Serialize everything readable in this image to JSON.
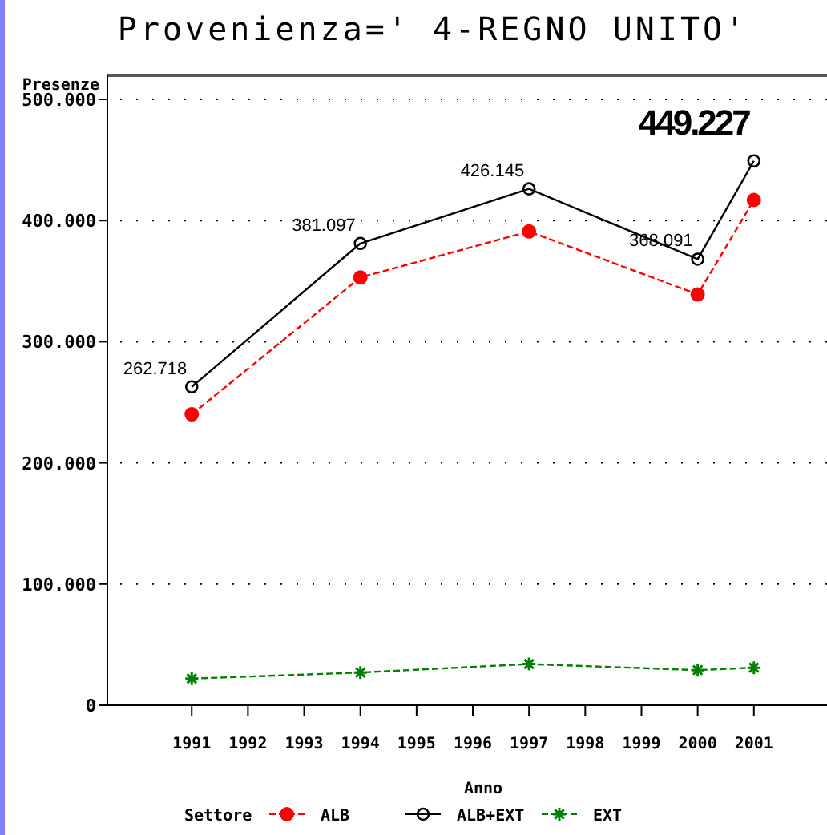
{
  "chart_data": {
    "type": "line",
    "title": "Provenienza=' 4-REGNO UNITO'",
    "xlabel": "Anno",
    "ylabel": "Presenze",
    "legend_title": "Settore",
    "x": [
      1991,
      1994,
      1997,
      2000,
      2001
    ],
    "xlim": [
      1989.5,
      2002.3
    ],
    "xticks": [
      1991,
      1992,
      1993,
      1994,
      1995,
      1996,
      1997,
      1998,
      1999,
      2000,
      2001
    ],
    "ylim": [
      0,
      500000
    ],
    "yticks": [
      0,
      {
        "value": 100000,
        "label": "100.000"
      },
      {
        "value": 200000,
        "label": "200.000"
      },
      {
        "value": 300000,
        "label": "300.000"
      },
      {
        "value": 400000,
        "label": "400.000"
      },
      {
        "value": 500000,
        "label": "500.000"
      }
    ],
    "grid": "y",
    "legend": "bottom",
    "series": [
      {
        "name": "ALB",
        "color": "#ff0000",
        "marker": "circle",
        "line_style": "dashed",
        "values": [
          240000,
          353000,
          391000,
          339000,
          417000
        ]
      },
      {
        "name": "ALB+EXT",
        "color": "#000000",
        "marker": "open-circle",
        "line_style": "solid",
        "values": [
          262718,
          381097,
          426145,
          368091,
          449227
        ],
        "value_labels": [
          "262.718",
          "381.097",
          "426.145",
          "368.091",
          "449.227"
        ]
      },
      {
        "name": "EXT",
        "color": "#008000",
        "marker": "cross",
        "line_style": "dashed",
        "values": [
          22000,
          27000,
          34000,
          29000,
          31000
        ]
      }
    ]
  }
}
